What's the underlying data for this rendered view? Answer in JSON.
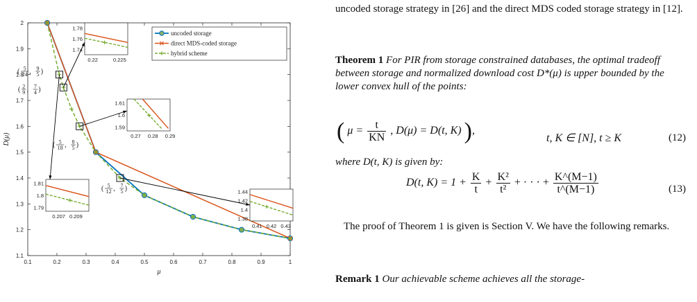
{
  "chart_data": {
    "type": "line",
    "xlabel": "μ",
    "ylabel": "D(μ)",
    "xlim": [
      0.1,
      1
    ],
    "ylim": [
      1.1,
      2
    ],
    "xticks": [
      "0.1",
      "0.2",
      "0.3",
      "0.4",
      "0.5",
      "0.6",
      "0.7",
      "0.8",
      "0.9",
      "1"
    ],
    "yticks": [
      "1.1",
      "1.2",
      "1.3",
      "1.4",
      "1.5",
      "1.6",
      "1.7",
      "1.8",
      "1.9",
      "2"
    ],
    "grid": false,
    "legend_position": "top-right",
    "colors": {
      "uncoded": "#0072BD",
      "direct": "#D95319",
      "hybrid": "#77AC30",
      "marker_face": "#8DB06B"
    },
    "series": [
      {
        "name": "uncoded storage",
        "style": "solid-circle",
        "x": [
          0.1667,
          0.3333,
          0.5,
          0.6667,
          0.8333,
          1.0
        ],
        "y": [
          2.0,
          1.5,
          1.3333,
          1.25,
          1.2,
          1.1667
        ]
      },
      {
        "name": "direct MDS-coded storage",
        "style": "solid-x",
        "x": [
          0.1667,
          0.3333,
          1.0
        ],
        "y": [
          2.0,
          1.5,
          1.1667
        ]
      },
      {
        "name": "hybrid scheme",
        "style": "dashed-plus",
        "x": [
          0.1667,
          0.2083,
          0.2222,
          0.25,
          0.2778,
          0.3333,
          0.4167,
          0.5,
          0.6667,
          0.8333,
          1.0
        ],
        "y": [
          2.0,
          1.8,
          1.75,
          1.6667,
          1.6,
          1.5,
          1.4,
          1.3333,
          1.25,
          1.2,
          1.1667
        ]
      }
    ],
    "annotations": [
      {
        "label": [
          "(",
          "5",
          "24",
          ", ",
          "9",
          "5",
          ")"
        ]
      },
      {
        "label": [
          "(",
          "2",
          "9",
          ", ",
          "7",
          "4",
          ")"
        ]
      },
      {
        "label": [
          "(",
          "5",
          "18",
          ", ",
          "8",
          "5",
          ")"
        ]
      },
      {
        "label": [
          "(",
          "5",
          "12",
          ", ",
          "7",
          "5",
          ")"
        ]
      }
    ],
    "insets": [
      {
        "xticks": [
          "0.22",
          "0.225"
        ],
        "yticks": [
          "1.78",
          "1.76",
          "1.74"
        ]
      },
      {
        "xticks": [
          "0.27",
          "0.28",
          "0.29"
        ],
        "yticks": [
          "1.61",
          "1.6",
          "1.59"
        ]
      },
      {
        "xticks": [
          "0.41",
          "0.42",
          "0.43"
        ],
        "yticks": [
          "1.44",
          "1.42",
          "1.4",
          "1.38"
        ]
      },
      {
        "xticks": [
          "0.207",
          "0.209"
        ],
        "yticks": [
          "1.81",
          "1.8",
          "1.79"
        ]
      }
    ]
  },
  "text": {
    "intro": "uncoded storage strategy in [26] and the direct MDS coded storage strategy in [12].",
    "theorem_label": "Theorem 1",
    "theorem_body_a": "For PIR from storage constrained databases, the optimal tradeoff between storage and normalized download cost",
    "theorem_dstar": "D*(μ)",
    "theorem_body_b": "is upper bounded by the lower convex hull of the points:",
    "eq12_mu": "μ =",
    "eq12_num": "t",
    "eq12_den": "KN",
    "eq12_rest": ",  D(μ) = D(t, K)",
    "eq12_cond": "t, K ∈ [N], t ≥ K",
    "eq12_tag": "(12)",
    "where_text": "where D(t, K) is given by:",
    "eq13_lhs": "D(t, K) = 1 +",
    "eq13_f1_num": "K",
    "eq13_f1_den": "t",
    "eq13_plus": "+",
    "eq13_f2_num": "K²",
    "eq13_f2_den": "t²",
    "eq13_dots": "+ · · · +",
    "eq13_f3_num": "K^(M−1)",
    "eq13_f3_den": "t^(M−1)",
    "eq13_tag": "(13)",
    "proof_text": "The proof of Theorem 1 is given is Section V. We have the following remarks.",
    "remark_label": "Remark 1",
    "remark_body": "Our achievable scheme achieves all the storage-"
  }
}
